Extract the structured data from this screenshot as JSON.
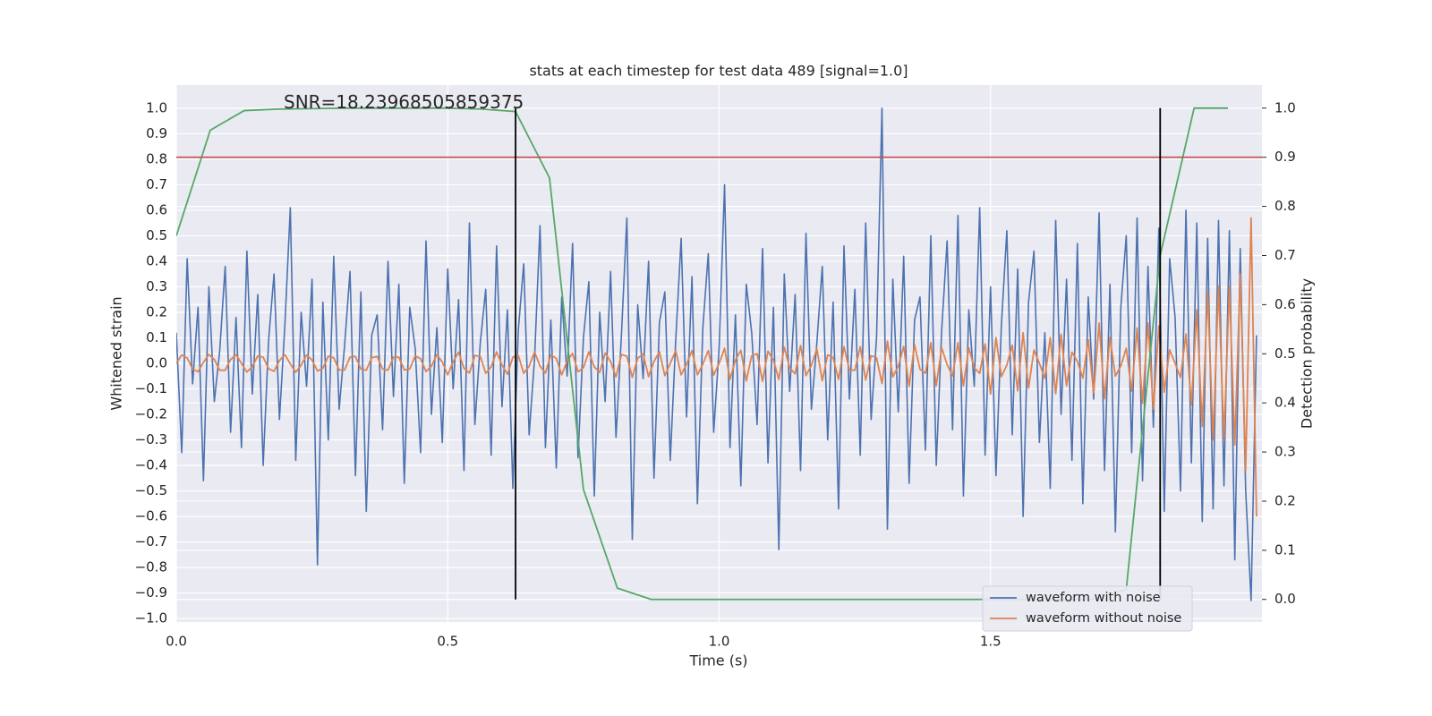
{
  "chart_data": {
    "type": "line",
    "title": "stats at each timestep for test data 489 [signal=1.0]",
    "xlabel": "Time (s)",
    "ylabel": "Whitened strain",
    "y2label": "Detection probability",
    "annotation": "SNR=18.23968505859375",
    "xlim": [
      0,
      2.0
    ],
    "ylim": [
      -1.014,
      1.091
    ],
    "y2lim": [
      -0.046,
      1.047
    ],
    "xticks": [
      {
        "value": 0,
        "label": "0.0"
      },
      0.5,
      {
        "value": 1,
        "label": "1.0"
      },
      1.5
    ],
    "yticks": [
      {
        "value": -1.0,
        "label": "−1.0"
      },
      {
        "value": -0.9,
        "label": "−0.9"
      },
      {
        "value": -0.8,
        "label": "−0.8"
      },
      {
        "value": -0.7,
        "label": "−0.7"
      },
      {
        "value": -0.6,
        "label": "−0.6"
      },
      {
        "value": -0.5,
        "label": "−0.5"
      },
      {
        "value": -0.4,
        "label": "−0.4"
      },
      {
        "value": -0.3,
        "label": "−0.3"
      },
      {
        "value": -0.2,
        "label": "−0.2"
      },
      {
        "value": -0.1,
        "label": "−0.1"
      },
      {
        "value": 0,
        "label": "0.0"
      },
      0.1,
      0.2,
      0.3,
      0.4,
      0.5,
      0.6,
      0.7,
      0.8,
      0.9,
      {
        "value": 1,
        "label": "1.0"
      }
    ],
    "y2ticks": [
      {
        "value": 0,
        "label": "0.0"
      },
      0.1,
      0.2,
      0.3,
      0.4,
      0.5,
      0.6,
      0.7,
      0.8,
      0.9,
      {
        "value": 1,
        "label": "1.0"
      }
    ],
    "grid": true,
    "legend": "lower right",
    "hline": {
      "y": 0.9,
      "axis": "y2",
      "color": "#c44e52"
    },
    "vlines": {
      "x": [
        0.625,
        1.8125
      ],
      "ymin": 0,
      "ymax": 1,
      "axis": "y2",
      "color": "#000000"
    },
    "x": [
      0,
      0.01,
      0.02,
      0.03,
      0.04,
      0.05,
      0.06,
      0.07,
      0.08,
      0.09,
      0.1,
      0.11,
      0.12,
      0.13,
      0.14,
      0.15,
      0.16,
      0.17,
      0.18,
      0.19,
      0.2,
      0.21,
      0.22,
      0.23,
      0.24,
      0.25,
      0.26,
      0.27,
      0.28,
      0.29,
      0.3,
      0.31,
      0.32,
      0.33,
      0.34,
      0.35,
      0.36,
      0.37,
      0.38,
      0.39,
      0.4,
      0.41,
      0.42,
      0.43,
      0.44,
      0.45,
      0.46,
      0.47,
      0.48,
      0.49,
      0.5,
      0.51,
      0.52,
      0.53,
      0.54,
      0.55,
      0.56,
      0.57,
      0.58,
      0.59,
      0.6,
      0.61,
      0.62,
      0.63,
      0.64,
      0.65,
      0.66,
      0.67,
      0.68,
      0.69,
      0.7,
      0.71,
      0.72,
      0.73,
      0.74,
      0.75,
      0.76,
      0.77,
      0.78,
      0.79,
      0.8,
      0.81,
      0.82,
      0.83,
      0.84,
      0.85,
      0.86,
      0.87,
      0.88,
      0.89,
      0.9,
      0.91,
      0.92,
      0.93,
      0.94,
      0.95,
      0.96,
      0.97,
      0.98,
      0.99,
      1.0,
      1.01,
      1.02,
      1.03,
      1.04,
      1.05,
      1.06,
      1.07,
      1.08,
      1.09,
      1.1,
      1.11,
      1.12,
      1.13,
      1.14,
      1.15,
      1.16,
      1.17,
      1.18,
      1.19,
      1.2,
      1.21,
      1.22,
      1.23,
      1.24,
      1.25,
      1.26,
      1.27,
      1.28,
      1.29,
      1.3,
      1.31,
      1.32,
      1.33,
      1.34,
      1.35,
      1.36,
      1.37,
      1.38,
      1.39,
      1.4,
      1.41,
      1.42,
      1.43,
      1.44,
      1.45,
      1.46,
      1.47,
      1.48,
      1.49,
      1.5,
      1.51,
      1.52,
      1.53,
      1.54,
      1.55,
      1.56,
      1.57,
      1.58,
      1.59,
      1.6,
      1.61,
      1.62,
      1.63,
      1.64,
      1.65,
      1.66,
      1.67,
      1.68,
      1.69,
      1.7,
      1.71,
      1.72,
      1.73,
      1.74,
      1.75,
      1.76,
      1.77,
      1.78,
      1.79,
      1.8,
      1.81,
      1.82,
      1.83,
      1.84,
      1.85,
      1.86,
      1.87,
      1.88,
      1.89,
      1.9,
      1.91,
      1.92,
      1.93,
      1.94,
      1.95,
      1.96,
      1.97,
      1.98,
      1.99
    ],
    "series": [
      {
        "name": "waveform with noise",
        "color": "#4c72b0",
        "values": [
          0.12,
          -0.35,
          0.41,
          -0.08,
          0.22,
          -0.46,
          0.3,
          -0.15,
          0.05,
          0.38,
          -0.27,
          0.18,
          -0.33,
          0.44,
          -0.12,
          0.27,
          -0.4,
          0.09,
          0.35,
          -0.22,
          0.15,
          0.61,
          -0.38,
          0.2,
          -0.09,
          0.33,
          -0.79,
          0.24,
          -0.3,
          0.42,
          -0.18,
          0.07,
          0.36,
          -0.44,
          0.28,
          -0.58,
          0.11,
          0.19,
          -0.26,
          0.4,
          -0.13,
          0.31,
          -0.47,
          0.22,
          0.06,
          -0.35,
          0.48,
          -0.2,
          0.14,
          -0.31,
          0.37,
          -0.1,
          0.25,
          -0.42,
          0.55,
          -0.24,
          0.08,
          0.29,
          -0.36,
          0.46,
          -0.17,
          0.21,
          -0.49,
          0.13,
          0.39,
          -0.28,
          0.02,
          0.54,
          -0.33,
          0.17,
          -0.41,
          0.26,
          -0.05,
          0.47,
          -0.37,
          0.1,
          0.32,
          -0.52,
          0.2,
          -0.15,
          0.36,
          -0.29,
          0.11,
          0.57,
          -0.69,
          0.23,
          -0.06,
          0.4,
          -0.45,
          0.16,
          0.28,
          -0.38,
          0.09,
          0.49,
          -0.21,
          0.34,
          -0.55,
          0.14,
          0.43,
          -0.27,
          0.06,
          0.7,
          -0.33,
          0.19,
          -0.48,
          0.31,
          0.12,
          -0.24,
          0.45,
          -0.39,
          0.22,
          -0.73,
          0.35,
          -0.11,
          0.27,
          -0.42,
          0.51,
          -0.18,
          0.08,
          0.38,
          -0.3,
          0.24,
          -0.57,
          0.46,
          -0.14,
          0.29,
          -0.36,
          0.55,
          -0.22,
          0.1,
          1.0,
          -0.65,
          0.33,
          -0.19,
          0.42,
          -0.47,
          0.17,
          0.26,
          -0.34,
          0.5,
          -0.4,
          0.13,
          0.48,
          -0.26,
          0.58,
          -0.52,
          0.21,
          -0.09,
          0.61,
          -0.36,
          0.3,
          -0.44,
          0.15,
          0.52,
          -0.28,
          0.37,
          -0.6,
          0.24,
          0.44,
          -0.31,
          0.12,
          -0.49,
          0.56,
          -0.2,
          0.33,
          -0.38,
          0.47,
          -0.55,
          0.26,
          -0.14,
          0.59,
          -0.42,
          0.31,
          -0.66,
          0.22,
          0.5,
          -0.35,
          0.57,
          -0.46,
          0.38,
          -0.25,
          0.53,
          -0.58,
          0.41,
          0.18,
          -0.5,
          0.6,
          -0.39,
          0.55,
          -0.62,
          0.49,
          -0.57,
          0.56,
          -0.48,
          0.52,
          -0.77,
          0.45,
          -0.5,
          -0.93,
          0.11
        ]
      },
      {
        "name": "waveform without noise",
        "color": "#dd8452",
        "values": [
          0,
          0.033,
          0.021,
          -0.022,
          -0.033,
          0.004,
          0.035,
          0.015,
          -0.027,
          -0.027,
          0.015,
          0.034,
          0,
          -0.034,
          -0.013,
          0.029,
          0.024,
          -0.021,
          -0.031,
          0.011,
          0.034,
          -0.002,
          -0.035,
          -0.007,
          0.033,
          0.013,
          -0.03,
          -0.019,
          0.028,
          0.022,
          -0.026,
          -0.026,
          0.024,
          0.027,
          -0.022,
          -0.027,
          0.022,
          0.027,
          -0.022,
          -0.027,
          0.024,
          0.024,
          -0.026,
          -0.022,
          0.029,
          0.018,
          -0.032,
          -0.011,
          0.034,
          0.005,
          -0.045,
          0.006,
          0.044,
          -0.019,
          -0.038,
          0.031,
          0.027,
          -0.039,
          -0.014,
          0.045,
          -0.006,
          -0.043,
          0.024,
          0.031,
          -0.039,
          -0.011,
          0.045,
          -0.011,
          -0.038,
          0.033,
          0.019,
          -0.045,
          0.009,
          0.039,
          -0.033,
          -0.017,
          0.045,
          -0.014,
          -0.035,
          0.04,
          0.007,
          -0.053,
          0.035,
          0.028,
          -0.055,
          0.02,
          0.037,
          -0.052,
          0.007,
          0.046,
          -0.048,
          0,
          0.05,
          -0.045,
          -0.003,
          0.05,
          -0.045,
          -0.003,
          0.05,
          -0.046,
          0,
          0.059,
          -0.063,
          0.013,
          0.051,
          -0.069,
          0.03,
          0.038,
          -0.07,
          0.048,
          0.013,
          -0.063,
          0.063,
          -0.018,
          -0.041,
          0.07,
          -0.048,
          -0.008,
          0.057,
          -0.068,
          0.034,
          0.022,
          -0.063,
          0.065,
          -0.026,
          -0.027,
          0.065,
          -0.065,
          0.03,
          0.022,
          -0.079,
          0.087,
          -0.053,
          -0.011,
          0.066,
          -0.09,
          0.073,
          -0.023,
          -0.039,
          0.081,
          -0.088,
          0.061,
          -0.005,
          -0.049,
          0.081,
          -0.088,
          0.061,
          -0.017,
          -0.039,
          0.076,
          -0.12,
          0.101,
          -0.052,
          -0.007,
          0.071,
          -0.108,
          0.12,
          -0.097,
          0.052,
          0,
          -0.058,
          0.101,
          -0.119,
          0.114,
          -0.088,
          0.044,
          0.007,
          -0.058,
          0.092,
          -0.116,
          0.158,
          -0.139,
          0.101,
          -0.05,
          -0.01,
          0.059,
          -0.109,
          0.139,
          -0.157,
          0.158,
          -0.18,
          0.146,
          -0.113,
          0.053,
          0,
          -0.055,
          0.115,
          -0.163,
          0.21,
          -0.247,
          0.28,
          -0.3,
          0.304,
          -0.296,
          0.3,
          -0.32,
          0.35,
          -0.42,
          0.57,
          -0.6
        ]
      },
      {
        "color": "#55a868",
        "axis": "y2",
        "x": [
          0,
          0.0625,
          0.125,
          0.1875,
          0.25,
          0.3125,
          0.375,
          0.4375,
          0.5,
          0.5625,
          0.625,
          0.6875,
          0.75,
          0.8125,
          0.875,
          0.9375,
          1.0,
          1.0625,
          1.125,
          1.1875,
          1.25,
          1.3125,
          1.375,
          1.4375,
          1.5,
          1.5625,
          1.625,
          1.6875,
          1.75,
          1.8125,
          1.875,
          1.9375
        ],
        "values": [
          0.74,
          0.955,
          0.995,
          0.998,
          0.999,
          1.0,
          1.0,
          1.0,
          1.0,
          0.998,
          0.993,
          0.858,
          0.224,
          0.023,
          0,
          0,
          0,
          0,
          0,
          0,
          0,
          0,
          0,
          0,
          0,
          0,
          0,
          0,
          0.02,
          0.7,
          1.0,
          1.0
        ]
      }
    ]
  }
}
